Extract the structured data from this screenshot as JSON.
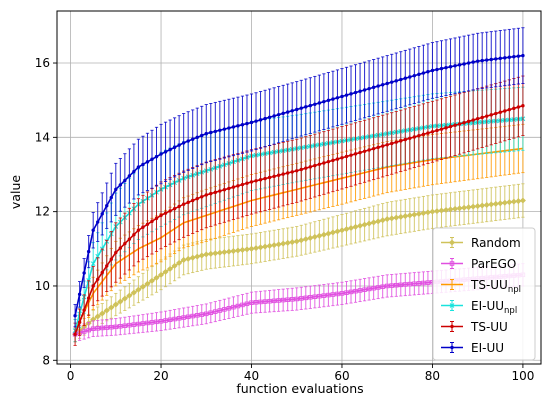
{
  "chart_data": {
    "type": "line",
    "title": "",
    "xlabel": "function evaluations",
    "ylabel": "value",
    "xlim": [
      -3,
      104
    ],
    "ylim": [
      7.9,
      17.4
    ],
    "xticks": [
      0,
      20,
      40,
      60,
      80,
      100
    ],
    "yticks": [
      8,
      10,
      12,
      14,
      16
    ],
    "grid": true,
    "legend_position": "lower-right",
    "error_bars": true,
    "x_range": [
      1,
      100
    ],
    "series": [
      {
        "name": "Random",
        "label_parts": [
          "Random",
          ""
        ],
        "color": "#cfc25a",
        "marker": "diamond",
        "points": [
          [
            1,
            8.7
          ],
          [
            5,
            9.1
          ],
          [
            10,
            9.5
          ],
          [
            15,
            9.9
          ],
          [
            20,
            10.3
          ],
          [
            25,
            10.7
          ],
          [
            30,
            10.85
          ],
          [
            40,
            11.0
          ],
          [
            50,
            11.2
          ],
          [
            60,
            11.5
          ],
          [
            70,
            11.8
          ],
          [
            80,
            12.0
          ],
          [
            90,
            12.15
          ],
          [
            100,
            12.3
          ]
        ],
        "err_points": [
          [
            1,
            0.2
          ],
          [
            10,
            0.3
          ],
          [
            20,
            0.4
          ],
          [
            30,
            0.4
          ],
          [
            50,
            0.4
          ],
          [
            70,
            0.45
          ],
          [
            100,
            0.45
          ]
        ]
      },
      {
        "name": "ParEGO",
        "label_parts": [
          "ParEGO",
          ""
        ],
        "color": "#e04fe0",
        "marker": "square",
        "points": [
          [
            1,
            8.7
          ],
          [
            5,
            8.85
          ],
          [
            10,
            8.9
          ],
          [
            20,
            9.05
          ],
          [
            30,
            9.25
          ],
          [
            40,
            9.55
          ],
          [
            50,
            9.65
          ],
          [
            60,
            9.8
          ],
          [
            70,
            10.0
          ],
          [
            80,
            10.1
          ],
          [
            90,
            10.2
          ],
          [
            100,
            10.3
          ]
        ],
        "err_points": [
          [
            1,
            0.2
          ],
          [
            20,
            0.25
          ],
          [
            50,
            0.3
          ],
          [
            100,
            0.3
          ]
        ]
      },
      {
        "name": "TS-UUnpl",
        "label_parts": [
          "TS-UU",
          "npl"
        ],
        "color": "#ff9a00",
        "marker": "none",
        "points": [
          [
            1,
            8.8
          ],
          [
            5,
            9.8
          ],
          [
            10,
            10.6
          ],
          [
            15,
            11.0
          ],
          [
            20,
            11.3
          ],
          [
            25,
            11.7
          ],
          [
            30,
            11.9
          ],
          [
            40,
            12.3
          ],
          [
            50,
            12.6
          ],
          [
            60,
            12.9
          ],
          [
            70,
            13.2
          ],
          [
            80,
            13.4
          ],
          [
            90,
            13.55
          ],
          [
            100,
            13.7
          ]
        ],
        "err_points": [
          [
            1,
            0.3
          ],
          [
            10,
            0.6
          ],
          [
            30,
            0.7
          ],
          [
            60,
            0.7
          ],
          [
            100,
            0.65
          ]
        ]
      },
      {
        "name": "EI-UUnpl",
        "label_parts": [
          "EI-UU",
          "npl"
        ],
        "color": "#19e3dd",
        "marker": "x",
        "points": [
          [
            1,
            8.8
          ],
          [
            5,
            10.6
          ],
          [
            10,
            11.6
          ],
          [
            15,
            12.2
          ],
          [
            20,
            12.6
          ],
          [
            25,
            12.9
          ],
          [
            30,
            13.1
          ],
          [
            40,
            13.5
          ],
          [
            50,
            13.7
          ],
          [
            60,
            13.9
          ],
          [
            70,
            14.1
          ],
          [
            80,
            14.3
          ],
          [
            90,
            14.4
          ],
          [
            100,
            14.5
          ]
        ],
        "err_points": [
          [
            1,
            0.3
          ],
          [
            10,
            0.9
          ],
          [
            20,
            1.0
          ],
          [
            50,
            0.9
          ],
          [
            100,
            0.85
          ]
        ]
      },
      {
        "name": "TS-UU",
        "label_parts": [
          "TS-UU",
          ""
        ],
        "color": "#cc0000",
        "marker": "dot",
        "points": [
          [
            1,
            8.7
          ],
          [
            5,
            10.0
          ],
          [
            10,
            10.9
          ],
          [
            15,
            11.5
          ],
          [
            20,
            11.9
          ],
          [
            25,
            12.2
          ],
          [
            30,
            12.45
          ],
          [
            40,
            12.8
          ],
          [
            50,
            13.1
          ],
          [
            60,
            13.45
          ],
          [
            70,
            13.8
          ],
          [
            80,
            14.15
          ],
          [
            90,
            14.5
          ],
          [
            100,
            14.85
          ]
        ],
        "err_points": [
          [
            1,
            0.3
          ],
          [
            10,
            0.8
          ],
          [
            20,
            0.9
          ],
          [
            50,
            0.85
          ],
          [
            100,
            0.8
          ]
        ]
      },
      {
        "name": "EI-UU",
        "label_parts": [
          "EI-UU",
          ""
        ],
        "color": "#0000c8",
        "marker": "dot",
        "points": [
          [
            1,
            9.2
          ],
          [
            5,
            11.5
          ],
          [
            10,
            12.6
          ],
          [
            15,
            13.2
          ],
          [
            20,
            13.55
          ],
          [
            25,
            13.85
          ],
          [
            30,
            14.1
          ],
          [
            40,
            14.4
          ],
          [
            50,
            14.75
          ],
          [
            60,
            15.1
          ],
          [
            70,
            15.45
          ],
          [
            80,
            15.8
          ],
          [
            90,
            16.05
          ],
          [
            100,
            16.2
          ]
        ],
        "err_points": [
          [
            1,
            0.3
          ],
          [
            10,
            0.7
          ],
          [
            20,
            0.8
          ],
          [
            50,
            0.75
          ],
          [
            100,
            0.75
          ]
        ]
      }
    ]
  }
}
